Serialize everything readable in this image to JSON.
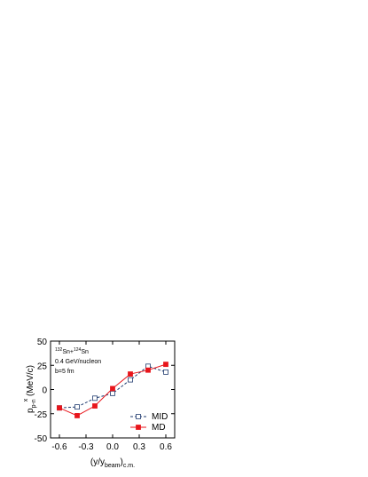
{
  "chart_data": {
    "type": "line",
    "annotations": {
      "mass1": "132",
      "elem1": "Sn+",
      "mass2": "124",
      "elem2": "Sn",
      "energy": "0.4 GeV/nucleon",
      "impact": "b=5 fm"
    },
    "ylabel": {
      "main": "p",
      "sub": "p-n",
      "sup": "x",
      "unit": " (MeV/c)"
    },
    "xlabel": {
      "main": "(y/y",
      "sub1": "beam",
      "close": ")",
      "sub2": "c.m."
    },
    "x": [
      -0.6,
      -0.4,
      -0.2,
      0.0,
      0.2,
      0.4,
      0.6
    ],
    "series": [
      {
        "name": "MID",
        "color": "#1f3a6e",
        "marker": "open",
        "dash": true,
        "values": [
          -19,
          -18,
          -9,
          -4,
          10,
          24,
          18
        ]
      },
      {
        "name": "MD",
        "color": "#e8151b",
        "marker": "filled",
        "dash": false,
        "values": [
          -19,
          -27,
          -17,
          1,
          16,
          20,
          26
        ]
      }
    ],
    "xlim": [
      -0.7,
      0.7
    ],
    "xticks": [
      {
        "value": -0.6,
        "label": "-0.6"
      },
      {
        "value": -0.3,
        "label": "-0.3"
      },
      {
        "value": 0,
        "label": "0.0"
      },
      {
        "value": 0.3,
        "label": "0.3"
      },
      {
        "value": 0.6,
        "label": "0.6"
      }
    ],
    "ylim": [
      -50,
      50
    ],
    "yticks": [
      -50,
      -25,
      0,
      25,
      50
    ],
    "legend": "lower right"
  }
}
